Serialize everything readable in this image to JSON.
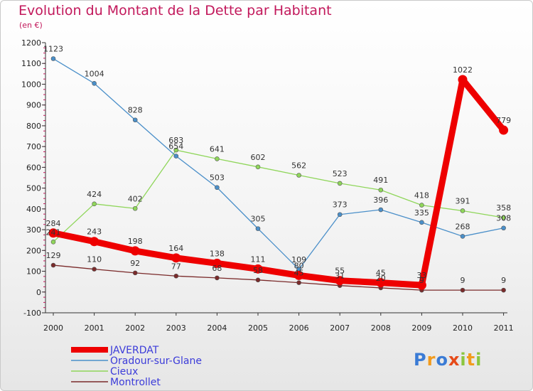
{
  "header": {
    "title": "Evolution du Montant de la Dette par Habitant",
    "subtitle": "(en €)"
  },
  "logo": {
    "text": "Proxiti"
  },
  "chart_data": {
    "type": "line",
    "title": "Evolution du Montant de la Dette par Habitant",
    "subtitle": "(en €)",
    "x": [
      "2000",
      "2001",
      "2002",
      "2003",
      "2004",
      "2005",
      "2006",
      "2007",
      "2008",
      "2009",
      "2010",
      "2011"
    ],
    "ylim": [
      -100,
      1200
    ],
    "yticks": [
      -100,
      0,
      100,
      200,
      300,
      400,
      500,
      600,
      700,
      800,
      900,
      1000,
      1100,
      1200
    ],
    "grid": false,
    "legend_position": "bottom-left",
    "series": [
      {
        "name": "JAVERDAT",
        "color": "#ee0000",
        "values": [
          284,
          243,
          198,
          164,
          138,
          111,
          80,
          55,
          45,
          33,
          1022,
          779
        ]
      },
      {
        "name": "Oradour-sur-Glane",
        "color": "#4a8fc9",
        "values": [
          1123,
          1004,
          828,
          654,
          503,
          305,
          109,
          373,
          396,
          335,
          268,
          308
        ]
      },
      {
        "name": "Cieux",
        "color": "#8fd65a",
        "values": [
          241,
          424,
          402,
          683,
          641,
          602,
          562,
          523,
          491,
          418,
          391,
          358
        ]
      },
      {
        "name": "Montrollet",
        "color": "#7a2a2a",
        "values": [
          129,
          110,
          92,
          77,
          68,
          58,
          45,
          31,
          20,
          9,
          9,
          9
        ]
      }
    ]
  }
}
